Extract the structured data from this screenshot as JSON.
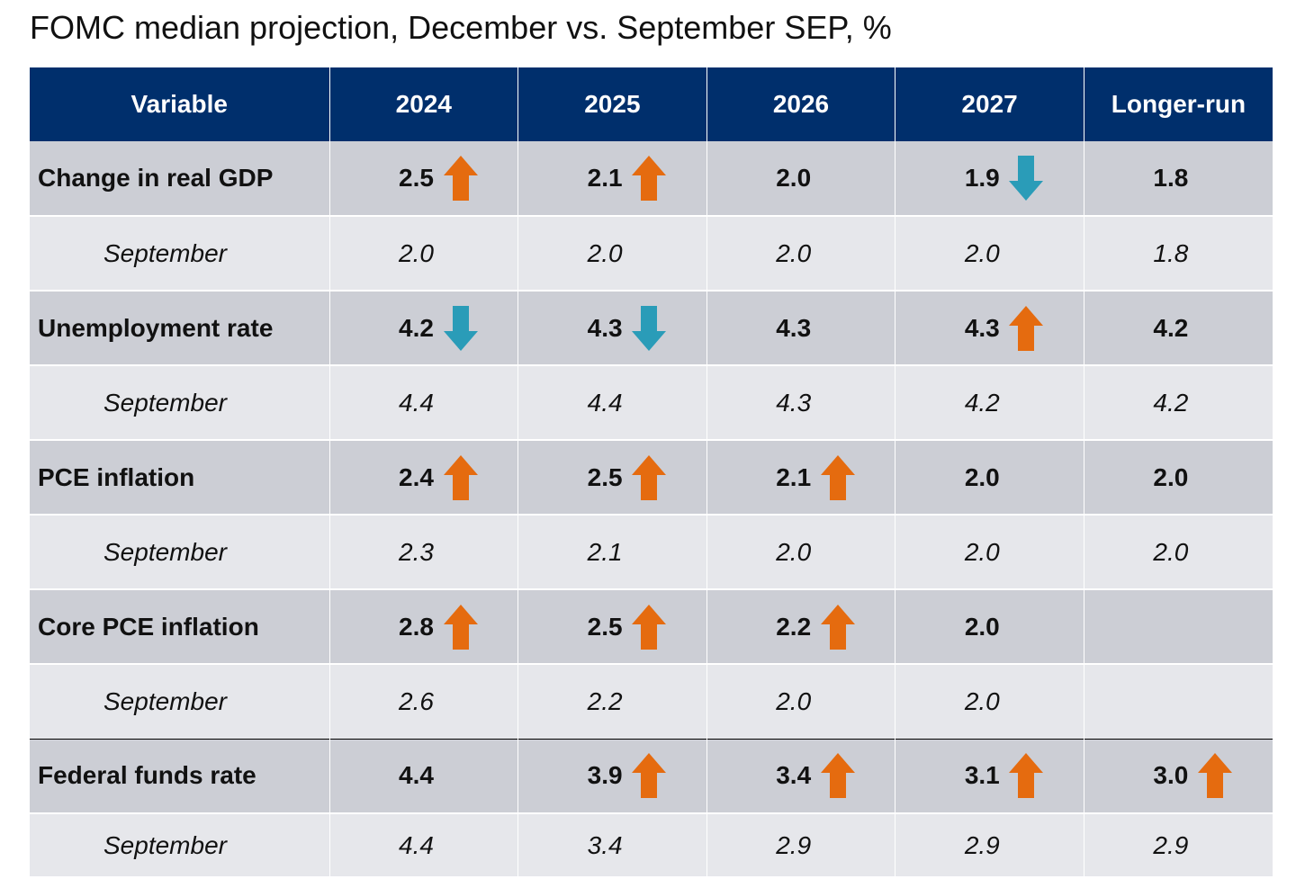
{
  "title": "FOMC median projection, December vs. September SEP, %",
  "colors": {
    "header_bg": "#002f6c",
    "december_row_bg": "#ccced5",
    "september_row_bg": "#e6e7eb",
    "arrow_up": "#e56b0f",
    "arrow_down": "#2a9cb8"
  },
  "header": [
    "Variable",
    "2024",
    "2025",
    "2026",
    "2027",
    "Longer-run"
  ],
  "rows": [
    {
      "label": "Change in real GDP",
      "kind": "december",
      "cells": [
        {
          "value": "2.5",
          "arrow": "up"
        },
        {
          "value": "2.1",
          "arrow": "up"
        },
        {
          "value": "2.0",
          "arrow": ""
        },
        {
          "value": "1.9",
          "arrow": "down"
        },
        {
          "value": "1.8",
          "arrow": ""
        }
      ]
    },
    {
      "label": "September",
      "kind": "september",
      "cells": [
        {
          "value": "2.0",
          "arrow": ""
        },
        {
          "value": "2.0",
          "arrow": ""
        },
        {
          "value": "2.0",
          "arrow": ""
        },
        {
          "value": "2.0",
          "arrow": ""
        },
        {
          "value": "1.8",
          "arrow": ""
        }
      ]
    },
    {
      "label": "Unemployment rate",
      "kind": "december",
      "cells": [
        {
          "value": "4.2",
          "arrow": "down"
        },
        {
          "value": "4.3",
          "arrow": "down"
        },
        {
          "value": "4.3",
          "arrow": ""
        },
        {
          "value": "4.3",
          "arrow": "up"
        },
        {
          "value": "4.2",
          "arrow": ""
        }
      ]
    },
    {
      "label": "September",
      "kind": "september",
      "cells": [
        {
          "value": "4.4",
          "arrow": ""
        },
        {
          "value": "4.4",
          "arrow": ""
        },
        {
          "value": "4.3",
          "arrow": ""
        },
        {
          "value": "4.2",
          "arrow": ""
        },
        {
          "value": "4.2",
          "arrow": ""
        }
      ]
    },
    {
      "label": "PCE inflation",
      "kind": "december",
      "cells": [
        {
          "value": "2.4",
          "arrow": "up"
        },
        {
          "value": "2.5",
          "arrow": "up"
        },
        {
          "value": "2.1",
          "arrow": "up"
        },
        {
          "value": "2.0",
          "arrow": ""
        },
        {
          "value": "2.0",
          "arrow": ""
        }
      ]
    },
    {
      "label": "September",
      "kind": "september",
      "cells": [
        {
          "value": "2.3",
          "arrow": ""
        },
        {
          "value": "2.1",
          "arrow": ""
        },
        {
          "value": "2.0",
          "arrow": ""
        },
        {
          "value": "2.0",
          "arrow": ""
        },
        {
          "value": "2.0",
          "arrow": ""
        }
      ]
    },
    {
      "label": "Core PCE inflation",
      "kind": "december",
      "cells": [
        {
          "value": "2.8",
          "arrow": "up"
        },
        {
          "value": "2.5",
          "arrow": "up"
        },
        {
          "value": "2.2",
          "arrow": "up"
        },
        {
          "value": "2.0",
          "arrow": ""
        },
        {
          "value": "",
          "arrow": ""
        }
      ]
    },
    {
      "label": "September",
      "kind": "september",
      "cells": [
        {
          "value": "2.6",
          "arrow": ""
        },
        {
          "value": "2.2",
          "arrow": ""
        },
        {
          "value": "2.0",
          "arrow": ""
        },
        {
          "value": "2.0",
          "arrow": ""
        },
        {
          "value": "",
          "arrow": ""
        }
      ]
    },
    {
      "label": "Federal funds rate",
      "kind": "december",
      "cells": [
        {
          "value": "4.4",
          "arrow": ""
        },
        {
          "value": "3.9",
          "arrow": "up"
        },
        {
          "value": "3.4",
          "arrow": "up"
        },
        {
          "value": "3.1",
          "arrow": "up"
        },
        {
          "value": "3.0",
          "arrow": "up"
        }
      ]
    },
    {
      "label": "September",
      "kind": "september",
      "cells": [
        {
          "value": "4.4",
          "arrow": ""
        },
        {
          "value": "3.4",
          "arrow": ""
        },
        {
          "value": "2.9",
          "arrow": ""
        },
        {
          "value": "2.9",
          "arrow": ""
        },
        {
          "value": "2.9",
          "arrow": ""
        }
      ]
    }
  ],
  "chart_data": {
    "type": "table",
    "title": "FOMC median projection, December vs. September SEP, %",
    "columns": [
      "Variable",
      "2024",
      "2025",
      "2026",
      "2027",
      "Longer-run"
    ],
    "rows": [
      [
        "Change in real GDP",
        2.5,
        2.1,
        2.0,
        1.9,
        1.8
      ],
      [
        "September",
        2.0,
        2.0,
        2.0,
        2.0,
        1.8
      ],
      [
        "Unemployment rate",
        4.2,
        4.3,
        4.3,
        4.3,
        4.2
      ],
      [
        "September",
        4.4,
        4.4,
        4.3,
        4.2,
        4.2
      ],
      [
        "PCE inflation",
        2.4,
        2.5,
        2.1,
        2.0,
        2.0
      ],
      [
        "September",
        2.3,
        2.1,
        2.0,
        2.0,
        2.0
      ],
      [
        "Core PCE inflation",
        2.8,
        2.5,
        2.2,
        2.0,
        null
      ],
      [
        "September",
        2.6,
        2.2,
        2.0,
        2.0,
        null
      ],
      [
        "Federal funds rate",
        4.4,
        3.9,
        3.4,
        3.1,
        3.0
      ],
      [
        "September",
        4.4,
        3.4,
        2.9,
        2.9,
        2.9
      ]
    ]
  }
}
